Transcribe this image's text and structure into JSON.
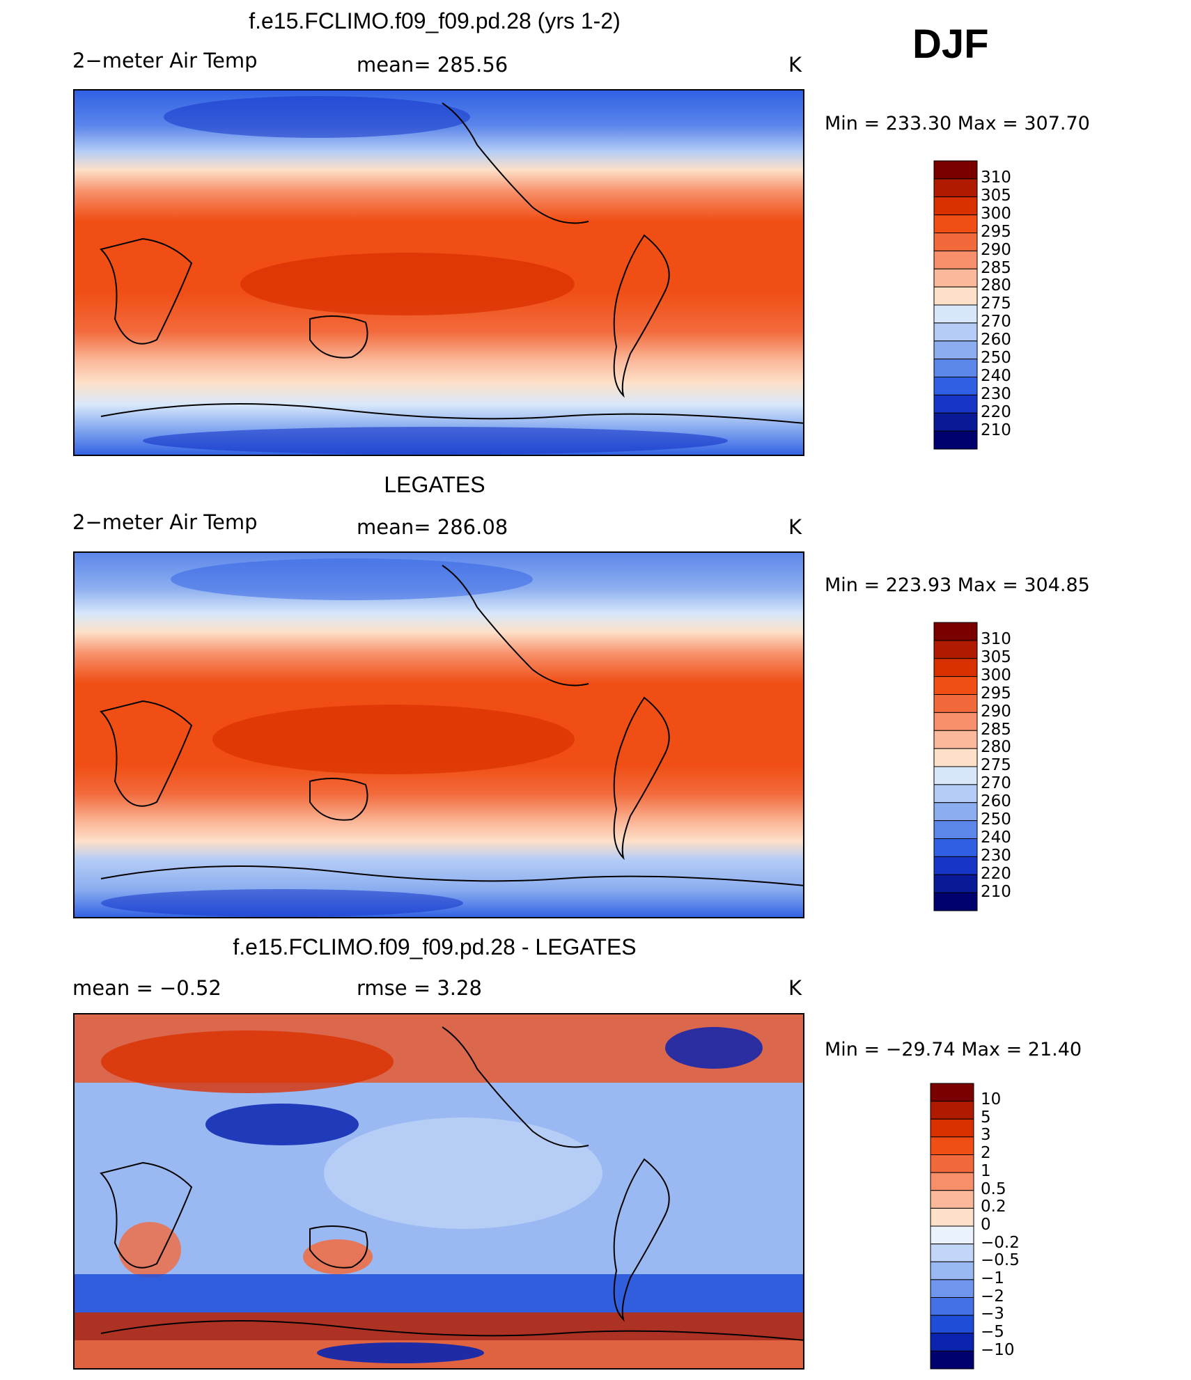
{
  "season": "DJF",
  "units": "K",
  "panels": [
    {
      "title": "f.e15.FCLIMO.f09_f09.pd.28 (yrs 1-2)",
      "left_label": "2−meter Air Temp",
      "center_label": "mean=  285.56",
      "right_label": "K",
      "minmax": "Min  =  233.30  Max  =  307.70",
      "colorbar_labels": [
        "310",
        "305",
        "300",
        "295",
        "290",
        "285",
        "280",
        "275",
        "270",
        "260",
        "250",
        "240",
        "230",
        "220",
        "210"
      ]
    },
    {
      "title": "LEGATES",
      "left_label": "2−meter Air Temp",
      "center_label": "mean=  286.08",
      "right_label": "K",
      "minmax": "Min  =  223.93  Max  =  304.85",
      "colorbar_labels": [
        "310",
        "305",
        "300",
        "295",
        "290",
        "285",
        "280",
        "275",
        "270",
        "260",
        "250",
        "240",
        "230",
        "220",
        "210"
      ]
    },
    {
      "title": "f.e15.FCLIMO.f09_f09.pd.28 - LEGATES",
      "left_label": "mean  =    −0.52",
      "center_label": "rmse  =     3.28",
      "right_label": "K",
      "minmax": "Min  =  −29.74  Max  =    21.40",
      "colorbar_labels": [
        "10",
        "5",
        "3",
        "2",
        "1",
        "0.5",
        "0.2",
        "0",
        "−0.2",
        "−0.5",
        "−1",
        "−2",
        "−3",
        "−5",
        "−10"
      ]
    }
  ],
  "colors": {
    "temp_scale": [
      "#7a0000",
      "#b01a00",
      "#d93000",
      "#f04e14",
      "#f26a3c",
      "#f7906a",
      "#fbb89a",
      "#fde0c8",
      "#d8e8fa",
      "#b4ccf6",
      "#8caef0",
      "#5b86ea",
      "#2f60e4",
      "#1636c8",
      "#0a1a96",
      "#00006e"
    ],
    "diff_scale": [
      "#7a0000",
      "#b01a00",
      "#d93000",
      "#f04e14",
      "#f26a3c",
      "#f7906a",
      "#fbb89a",
      "#fde0c8",
      "#eaf2fd",
      "#c2d6f8",
      "#9ab8f2",
      "#6f95ec",
      "#4472e6",
      "#1e4ed8",
      "#0a24b0",
      "#00006e"
    ]
  }
}
